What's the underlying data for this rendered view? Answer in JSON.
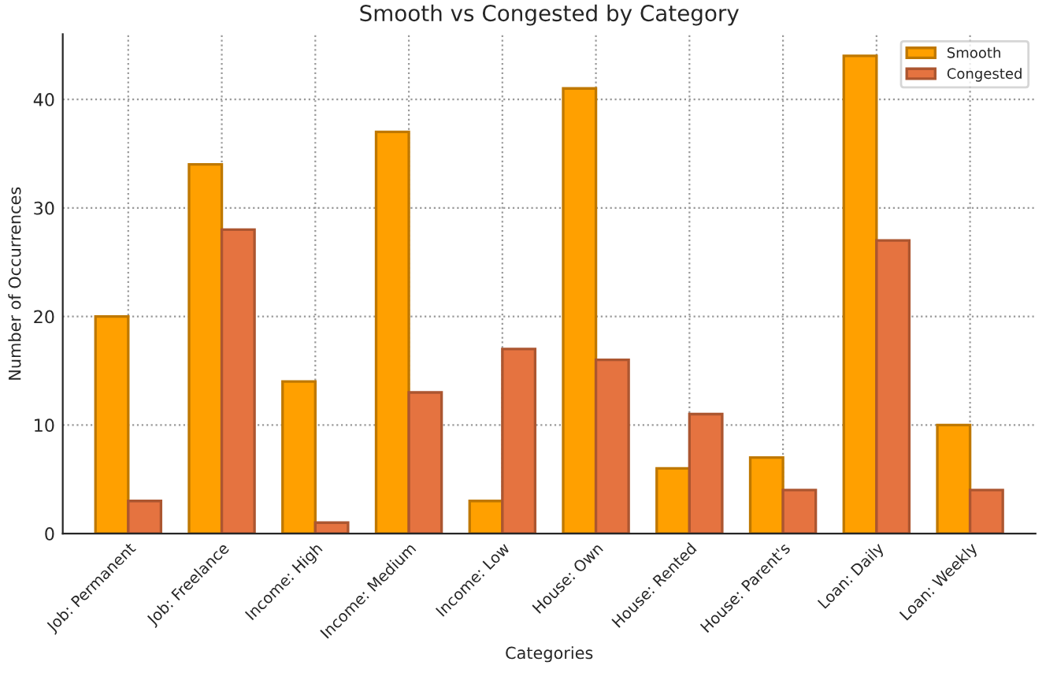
{
  "chart_data": {
    "type": "bar",
    "title": "Smooth vs Congested by Category",
    "xlabel": "Categories",
    "ylabel": "Number of Occurrences",
    "categories": [
      "Job: Permanent",
      "Job: Freelance",
      "Income: High",
      "Income: Medium",
      "Income: Low",
      "House: Own",
      "House: Rented",
      "House: Parent's",
      "Loan: Daily",
      "Loan: Weekly"
    ],
    "series": [
      {
        "name": "Smooth",
        "color": "#ffa000",
        "values": [
          20,
          34,
          14,
          37,
          3,
          41,
          6,
          7,
          44,
          10
        ]
      },
      {
        "name": "Congested",
        "color": "#e57340",
        "values": [
          3,
          28,
          1,
          13,
          17,
          16,
          11,
          4,
          27,
          4
        ]
      }
    ],
    "ylim": [
      0,
      46
    ],
    "yticks": [
      0,
      10,
      20,
      30,
      40
    ],
    "grid": true,
    "legend": "top right"
  }
}
